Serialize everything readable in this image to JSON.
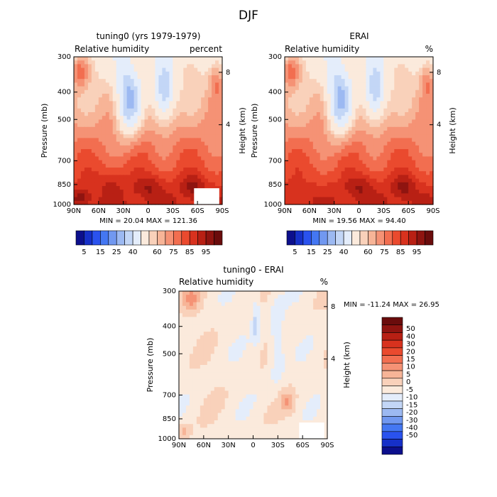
{
  "figure": {
    "title": "DJF"
  },
  "colors": {
    "neg": [
      "#0c0f8c",
      "#1630c8",
      "#2a52ee",
      "#4477f2",
      "#7198f0",
      "#9cb9f2",
      "#c3d6f6",
      "#e4edfb"
    ],
    "pos": [
      "#fbeadc",
      "#f9d1ba",
      "#f7b497",
      "#f59275",
      "#f26e50",
      "#ea4a2e",
      "#d8321e",
      "#b82014",
      "#8f1410",
      "#6a0c0c"
    ],
    "abs": [
      "#0c0f8c",
      "#1630c8",
      "#2a52ee",
      "#4477f2",
      "#7198f0",
      "#9cb9f2",
      "#c3d6f6",
      "#e4edfb",
      "#fbeadc",
      "#f9d1ba",
      "#f7b497",
      "#f59275",
      "#f26e50",
      "#ea4a2e",
      "#d8321e",
      "#b82014",
      "#8f1410",
      "#6a0c0c"
    ]
  },
  "chart_data": [
    {
      "type": "heatmap",
      "title": "tuning0 (yrs 1979-1979)",
      "left_label": "Relative humidity",
      "right_label": "percent",
      "xlabel": "",
      "ylabel": "Pressure (mb)",
      "y2label": "Height (km)",
      "xticks": [
        "90N",
        "60N",
        "30N",
        "0",
        "30S",
        "60S",
        "90S"
      ],
      "yticks": [
        300,
        400,
        500,
        700,
        850,
        1000
      ],
      "y2ticks": [
        8,
        4
      ],
      "stats": "MIN =  20.04   MAX = 121.36",
      "colorbar_labels": [
        "5",
        "15",
        "25",
        "40",
        "60",
        "75",
        "85",
        "95"
      ]
    },
    {
      "type": "heatmap",
      "title": "ERAI",
      "left_label": "Relative humidity",
      "right_label": "%",
      "xlabel": "",
      "ylabel": "Pressure (mb)",
      "y2label": "Height (km)",
      "xticks": [
        "90N",
        "60N",
        "30N",
        "0",
        "30S",
        "60S",
        "90S"
      ],
      "yticks": [
        300,
        400,
        500,
        700,
        850,
        1000
      ],
      "y2ticks": [
        8,
        4
      ],
      "stats": "MIN =  19.56   MAX =  94.40",
      "colorbar_labels": [
        "5",
        "15",
        "25",
        "40",
        "60",
        "75",
        "85",
        "95"
      ]
    },
    {
      "type": "heatmap",
      "title": "tuning0 - ERAI",
      "left_label": "Relative humidity",
      "right_label": "%",
      "xlabel": "",
      "ylabel": "Pressure (mb)",
      "y2label": "Height (km)",
      "xticks": [
        "90N",
        "60N",
        "30N",
        "0",
        "30S",
        "60S",
        "90S"
      ],
      "yticks": [
        300,
        400,
        500,
        700,
        850,
        1000
      ],
      "y2ticks": [
        8,
        4
      ],
      "stats": "MIN = -11.24   MAX =  26.95",
      "colorbar_labels": [
        "50",
        "40",
        "30",
        "20",
        "15",
        "10",
        "5",
        "0",
        "-5",
        "-10",
        "-15",
        "-20",
        "-30",
        "-40",
        "-50"
      ]
    }
  ]
}
